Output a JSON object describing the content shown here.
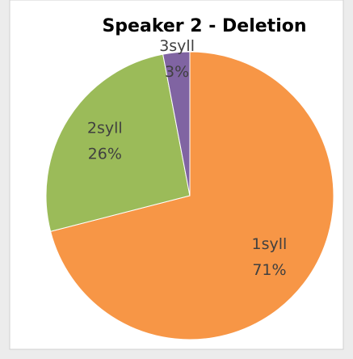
{
  "chart_data": {
    "type": "pie",
    "title": "Speaker 2 - Deletion",
    "categories": [
      "1syll",
      "2syll",
      "3syll"
    ],
    "values": [
      71,
      26,
      3
    ],
    "value_labels": [
      "71%",
      "26%",
      "3%"
    ],
    "colors": [
      "#f79646",
      "#9bbb59",
      "#8064a2"
    ]
  }
}
